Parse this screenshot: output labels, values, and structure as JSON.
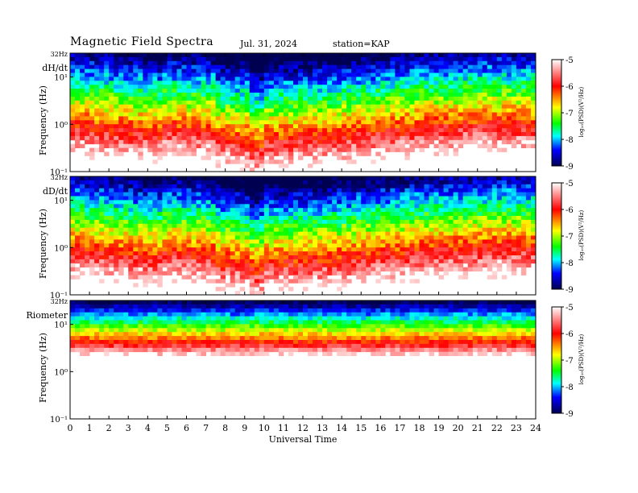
{
  "header": {
    "title": "Magnetic  Field  Spectra",
    "date": "Jul.  31,  2024",
    "station": "station=KAP"
  },
  "chart_data": [
    {
      "type": "heatmap",
      "panel_label": "dH/dt",
      "ylabel": "Frequency  (Hz)",
      "ytick_labels": [
        "32Hz",
        "10¹",
        "10⁰",
        "10⁻¹"
      ],
      "yscale": "log",
      "ylim": [
        0.1,
        32
      ],
      "xlim": [
        0,
        24
      ],
      "colorbar": {
        "label": "log₁₀(PSD)(V²/Hz)",
        "ticks": [
          -5,
          -6,
          -7,
          -8,
          -9
        ],
        "range": [
          -9,
          -5
        ]
      }
    },
    {
      "type": "heatmap",
      "panel_label": "dD/dt",
      "ylabel": "Frequency  (Hz)",
      "ytick_labels": [
        "32Hz",
        "10¹",
        "10⁰",
        "10⁻¹"
      ],
      "yscale": "log",
      "ylim": [
        0.1,
        32
      ],
      "xlim": [
        0,
        24
      ],
      "colorbar": {
        "label": "log₁₀(PSD)(V²/Hz)",
        "ticks": [
          -5,
          -6,
          -7,
          -8,
          -9
        ],
        "range": [
          -9,
          -5
        ]
      }
    },
    {
      "type": "heatmap",
      "panel_label": "Riometer",
      "ylabel": "Frequency  (Hz)",
      "ytick_labels": [
        "32Hz",
        "10¹",
        "10⁰",
        "10⁻¹"
      ],
      "yscale": "log",
      "ylim": [
        0.1,
        32
      ],
      "xlim": [
        0,
        24
      ],
      "colorbar": {
        "label": "log₁₀(PSD)(V²/Hz)",
        "ticks": [
          -5,
          -6,
          -7,
          -8,
          -9
        ],
        "range": [
          -9,
          -5
        ]
      }
    }
  ],
  "xaxis": {
    "label": "Universal  Time",
    "ticks": [
      "0",
      "1",
      "2",
      "3",
      "4",
      "5",
      "6",
      "7",
      "8",
      "9",
      "10",
      "11",
      "12",
      "13",
      "14",
      "15",
      "16",
      "17",
      "18",
      "19",
      "20",
      "21",
      "22",
      "23",
      "24"
    ]
  },
  "colors": {
    "scale": [
      "#000066",
      "#0000ff",
      "#00ffff",
      "#00ff00",
      "#ffff00",
      "#ff0000",
      "#ffffff"
    ]
  }
}
